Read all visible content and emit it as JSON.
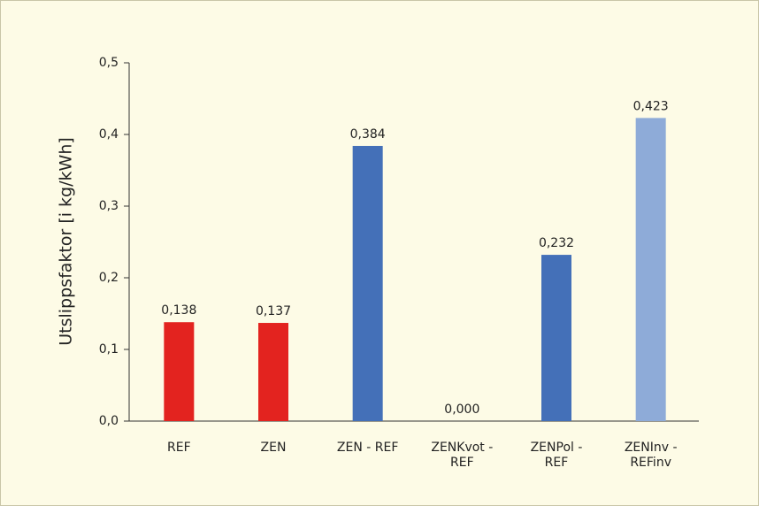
{
  "chart_data": {
    "type": "bar",
    "y_label": "Utslippsfaktor [i kg/kWh]",
    "categories": [
      "REF",
      "ZEN",
      "ZEN - REF",
      "ZENKvot -\nREF",
      "ZENPol -\nREF",
      "ZENInv -\nREFinv"
    ],
    "values": [
      0.138,
      0.137,
      0.384,
      0,
      0.232,
      0.423
    ],
    "value_labels": [
      "0,138",
      "0,137",
      "0,384",
      "0,000",
      "0,232",
      "0,423"
    ],
    "colors": [
      "#e3231f",
      "#e3231f",
      "#4470b8",
      "#4470b8",
      "#4470b8",
      "#8eabd8"
    ],
    "ylim": [
      0,
      0.5
    ],
    "yticks": [
      {
        "value": 0,
        "label": "0,0"
      },
      {
        "value": 0.1,
        "label": "0,1"
      },
      {
        "value": 0.2,
        "label": "0,2"
      },
      {
        "value": 0.3,
        "label": "0,3"
      },
      {
        "value": 0.4,
        "label": "0,4"
      },
      {
        "value": 0.5,
        "label": "0,5"
      }
    ],
    "grid": false
  }
}
